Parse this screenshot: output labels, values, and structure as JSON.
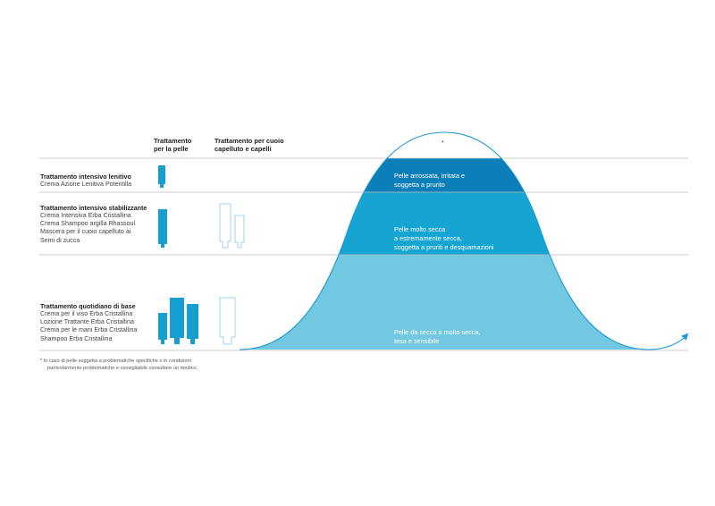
{
  "columns": {
    "skin_header": [
      "Trattamento",
      "per la pelle"
    ],
    "scalp_header": [
      "Trattamento per cuoio",
      "capelluto e capelli"
    ]
  },
  "rows": [
    {
      "title": "Trattamento intensivo lenitivo",
      "products": [
        "Crema Azione Lenitiva Potentilla"
      ]
    },
    {
      "title": "Trattamento intensivo stabilizzante",
      "products": [
        "Crema Intensiva Erba Cristallina",
        "Crema Shampoo argilla Rhassoul",
        "Mascera per il cuoio capelluto ai",
        "Semi di zucca"
      ]
    },
    {
      "title": "Trattamento quotidiano di base",
      "products": [
        "Crema per il viso Erba Cristallina",
        "Lozione Trattante Erba Cristallina",
        "Crema per le mani Erba Cristallina",
        "Shampoo Erba Cristallina"
      ]
    }
  ],
  "bands": {
    "top": [
      "Pelle arrossata, irritata e",
      "soggetta a prurito"
    ],
    "middle": [
      "Pelle molto secca",
      "a estremamente secca,",
      "soggetta a pruriti e desquamazioni"
    ],
    "bottom": [
      "Pelle da secca a molto secca,",
      "tesa e sensibile"
    ]
  },
  "curve_marker": "*",
  "footnote": [
    "*  In caso di pelle soggetta a problematiche specifiche o in condizioni",
    "particolarmente problematiche e consigliabile consultare un medico."
  ],
  "colors": {
    "band_top": "#0d7fb8",
    "band_middle": "#16a4d2",
    "band_bottom": "#72c8e0",
    "tube_fill": "#159fcf",
    "tube_outline": "#9fd6ea",
    "curve": "#1a9ad0",
    "rule": "#bdbdbd"
  }
}
